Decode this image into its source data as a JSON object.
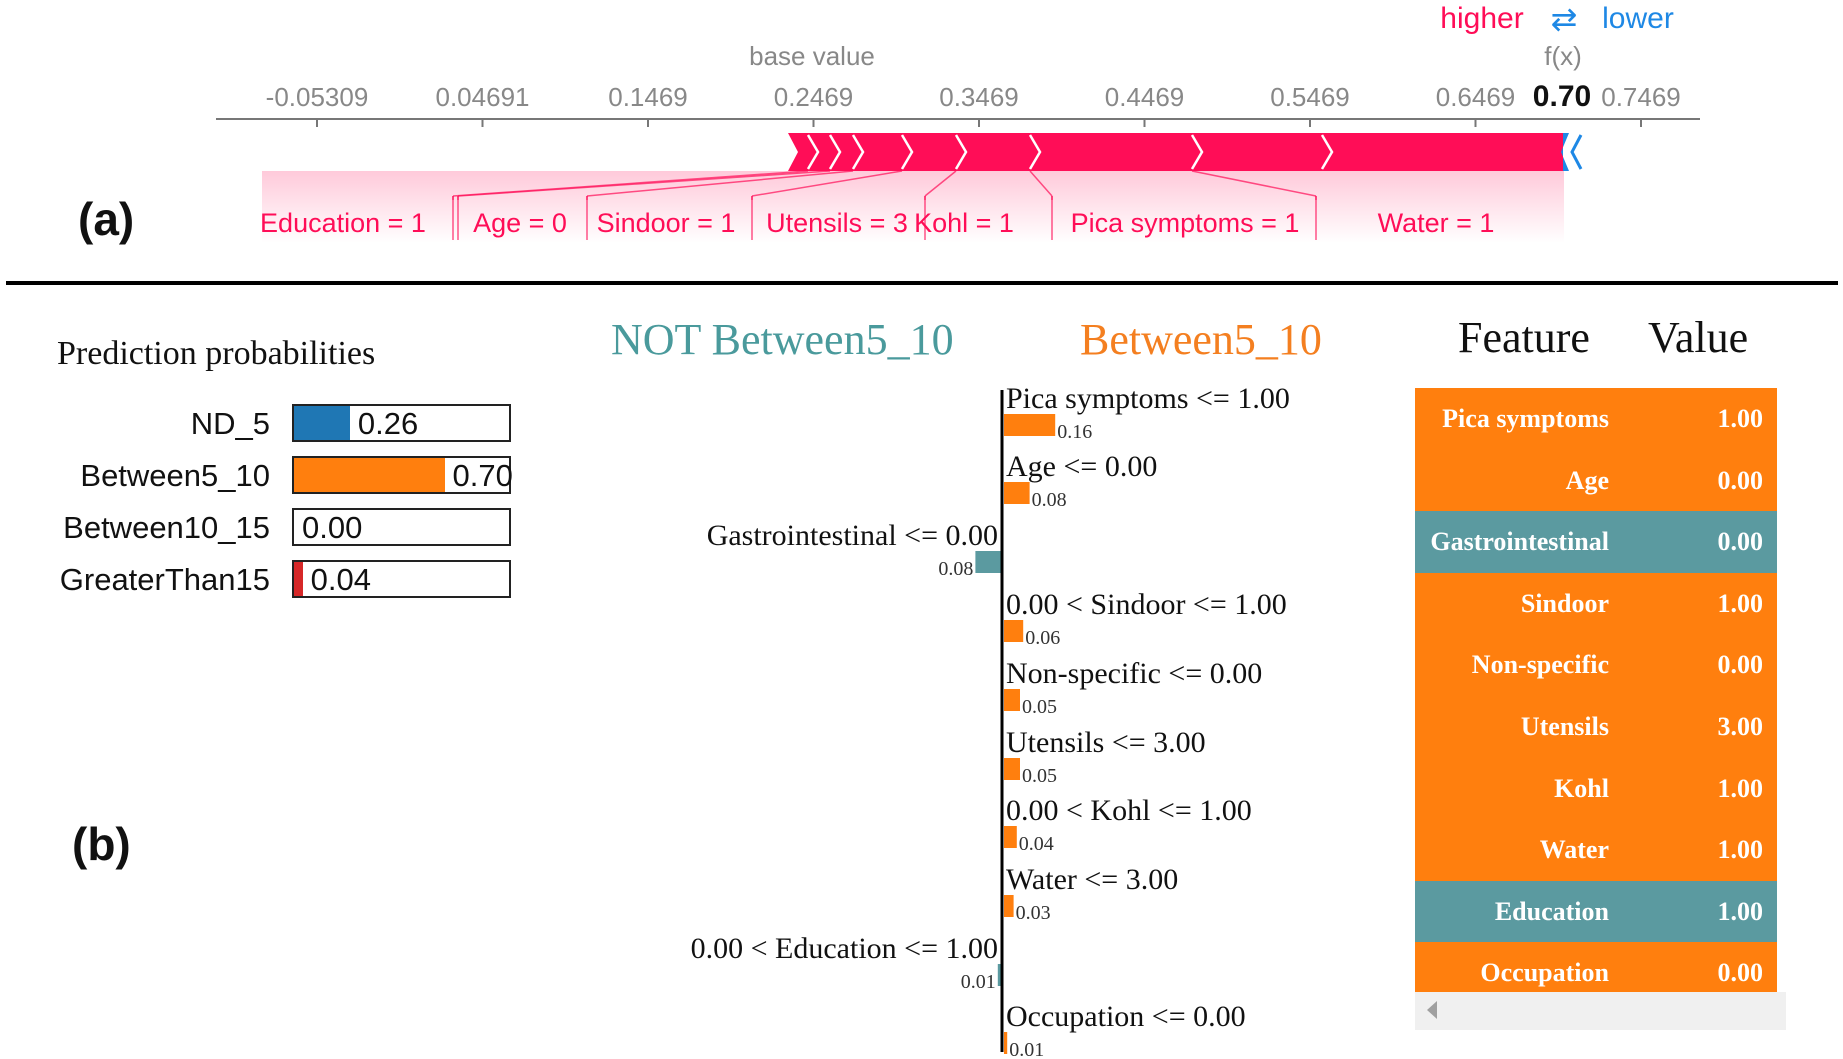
{
  "panel_labels": {
    "a": "(a)",
    "b": "(b)"
  },
  "force_plot": {
    "legend_higher": "higher",
    "legend_arrows": "⇄",
    "legend_lower": "lower",
    "base_value_label": "base value",
    "fx_label": "f(x)",
    "fx_value_text": "0.70",
    "colors": {
      "positive": "#ff0d57",
      "negative": "#1e88e5",
      "axis": "#777777",
      "tick_text": "#888888"
    },
    "ticks": [
      "-0.05309",
      "0.04691",
      "0.1469",
      "0.2469",
      "0.3469",
      "0.4469",
      "0.5469",
      "0.6469",
      "0.7469"
    ],
    "features": [
      "Education = 1",
      "Age = 0",
      "Sindoor = 1",
      "Utensils = 3",
      "Kohl = 1",
      "Pica symptoms = 1",
      "Water = 1"
    ]
  },
  "prediction_probabilities": {
    "title": "Prediction probabilities",
    "rows": [
      {
        "name": "ND_5",
        "value": 0.26,
        "text": "0.26",
        "color": "#1f77b4"
      },
      {
        "name": "Between5_10",
        "value": 0.7,
        "text": "0.70",
        "color": "#ff7f0e"
      },
      {
        "name": "Between10_15",
        "value": 0.0,
        "text": "0.00",
        "color": "#2ca02c"
      },
      {
        "name": "GreaterThan15",
        "value": 0.04,
        "text": "0.04",
        "color": "#d62728"
      }
    ]
  },
  "lime": {
    "neg_class": "NOT Between5_10",
    "pos_class": "Between5_10",
    "neg_color": "#5b9aa0",
    "pos_color": "#ff7f0e",
    "pos_head_color": "#f47f20",
    "neg_head_color": "#4a9a9c"
  },
  "chart_data": {
    "type": "bar",
    "title": "",
    "categories": [
      "Pica symptoms <= 1.00",
      "Age <= 0.00",
      "Gastrointestinal <= 0.00",
      "0.00 < Sindoor <= 1.00",
      "Non-specific <= 0.00",
      "Utensils <= 3.00",
      "0.00 < Kohl <= 1.00",
      "Water <= 3.00",
      "0.00 < Education <= 1.00",
      "Occupation <= 0.00"
    ],
    "values": [
      0.16,
      0.08,
      -0.08,
      0.06,
      0.05,
      0.05,
      0.04,
      0.03,
      -0.01,
      0.01
    ],
    "value_labels": [
      "0.16",
      "0.08",
      "0.08",
      "0.06",
      "0.05",
      "0.05",
      "0.04",
      "0.03",
      "0.01",
      "0.01"
    ]
  },
  "feature_table": {
    "header_feature": "Feature",
    "header_value": "Value",
    "rows": [
      {
        "feature": "Pica symptoms",
        "value": "1.00",
        "side": "pos"
      },
      {
        "feature": "Age",
        "value": "0.00",
        "side": "pos"
      },
      {
        "feature": "Gastrointestinal",
        "value": "0.00",
        "side": "neg"
      },
      {
        "feature": "Sindoor",
        "value": "1.00",
        "side": "pos"
      },
      {
        "feature": "Non-specific",
        "value": "0.00",
        "side": "pos"
      },
      {
        "feature": "Utensils",
        "value": "3.00",
        "side": "pos"
      },
      {
        "feature": "Kohl",
        "value": "1.00",
        "side": "pos"
      },
      {
        "feature": "Water",
        "value": "1.00",
        "side": "pos"
      },
      {
        "feature": "Education",
        "value": "1.00",
        "side": "neg"
      },
      {
        "feature": "Occupation",
        "value": "0.00",
        "side": "pos"
      }
    ]
  }
}
